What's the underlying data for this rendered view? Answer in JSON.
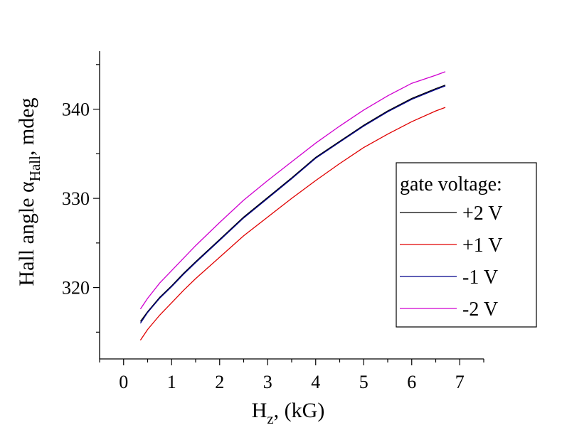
{
  "chart_data": {
    "type": "line",
    "title": "",
    "xlabel": {
      "main": "H",
      "sub": "z",
      "rest": ", (kG)"
    },
    "ylabel": {
      "main": "Hall angle α",
      "sub": "Hall",
      "rest": ", mdeg"
    },
    "xlim": [
      -0.5,
      7.5
    ],
    "ylim": [
      312,
      346.5
    ],
    "xticks": [
      0,
      1,
      2,
      3,
      4,
      5,
      6,
      7
    ],
    "xtick_labels": [
      "0",
      "1",
      "2",
      "3",
      "4",
      "5",
      "6",
      "7"
    ],
    "yticks": [
      320,
      330,
      340
    ],
    "ytick_labels": [
      "320",
      "330",
      "340"
    ],
    "grid": false,
    "legend": {
      "title": "gate voltage:",
      "placement": "right"
    },
    "x": [
      0.35,
      0.5,
      0.75,
      1.0,
      1.25,
      1.5,
      2.0,
      2.5,
      3.0,
      3.5,
      4.0,
      4.5,
      5.0,
      5.5,
      6.0,
      6.5,
      6.7
    ],
    "series": [
      {
        "name": "+2 V",
        "color": "#000000",
        "values": [
          316.2,
          317.3,
          318.9,
          320.2,
          321.6,
          322.9,
          325.4,
          327.9,
          330.1,
          332.3,
          334.6,
          336.4,
          338.2,
          339.8,
          341.2,
          342.3,
          342.7
        ]
      },
      {
        "name": "+1 V",
        "color": "#e00000",
        "values": [
          314.1,
          315.3,
          316.9,
          318.3,
          319.7,
          321.0,
          323.4,
          325.8,
          327.9,
          330.0,
          332.0,
          333.9,
          335.7,
          337.2,
          338.6,
          339.8,
          340.2
        ]
      },
      {
        "name": "-1 V",
        "color": "#00008b",
        "values": [
          316.0,
          317.2,
          318.8,
          320.1,
          321.5,
          322.8,
          325.3,
          327.8,
          330.0,
          332.2,
          334.5,
          336.3,
          338.1,
          339.7,
          341.1,
          342.2,
          342.6
        ]
      },
      {
        "name": "-2 V",
        "color": "#d000d0",
        "values": [
          317.6,
          318.8,
          320.5,
          321.9,
          323.3,
          324.7,
          327.3,
          329.8,
          332.0,
          334.1,
          336.2,
          338.1,
          339.9,
          341.5,
          342.9,
          343.8,
          344.2
        ]
      }
    ]
  }
}
